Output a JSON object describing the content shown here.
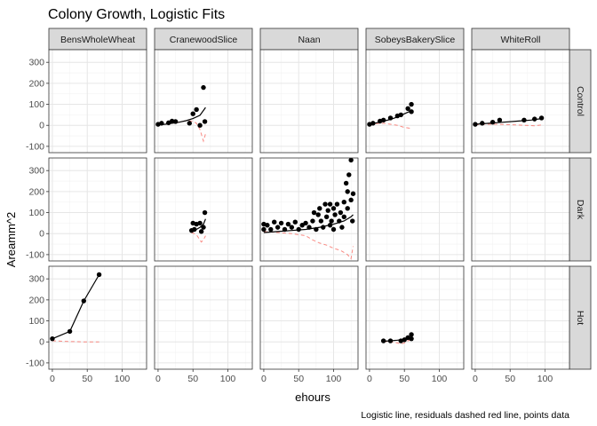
{
  "chart_data": {
    "type": "scatter",
    "title": "Colony Growth, Logistic Fits",
    "xlabel": "ehours",
    "ylabel": "Areamm^2",
    "caption": "Logistic line, residuals dashed red line, points data",
    "facet_cols": [
      "BensWholeWheat",
      "CranewoodSlice",
      "Naan",
      "SobeysBakerySlice",
      "WhiteRoll"
    ],
    "facet_rows": [
      "Control",
      "Dark",
      "Hot"
    ],
    "x_ticks": [
      "0",
      "50",
      "100"
    ],
    "y_ticks": [
      "-100",
      "0",
      "100",
      "200",
      "300"
    ],
    "xlim": [
      -5,
      135
    ],
    "ylim": [
      -130,
      360
    ],
    "grid": true,
    "colors": {
      "points": "#000000",
      "fit": "#000000",
      "residuals": "#f8766d",
      "strip": "#d9d9d9"
    },
    "panels": [
      {
        "col": "CranewoodSlice",
        "row": "Control",
        "points": [
          [
            0,
            5
          ],
          [
            5,
            10
          ],
          [
            15,
            12
          ],
          [
            20,
            20
          ],
          [
            25,
            18
          ],
          [
            45,
            10
          ],
          [
            50,
            55
          ],
          [
            55,
            75
          ],
          [
            60,
            0
          ],
          [
            65,
            180
          ],
          [
            67,
            18
          ]
        ],
        "fit": [
          [
            0,
            2
          ],
          [
            10,
            5
          ],
          [
            20,
            10
          ],
          [
            30,
            15
          ],
          [
            40,
            22
          ],
          [
            50,
            32
          ],
          [
            60,
            48
          ],
          [
            68,
            85
          ]
        ],
        "residuals": [
          [
            0,
            2
          ],
          [
            10,
            5
          ],
          [
            20,
            10
          ],
          [
            30,
            15
          ],
          [
            40,
            22
          ],
          [
            50,
            20
          ],
          [
            55,
            10
          ],
          [
            60,
            -20
          ],
          [
            65,
            -75
          ],
          [
            68,
            -40
          ]
        ]
      },
      {
        "col": "SobeysBakerySlice",
        "row": "Control",
        "points": [
          [
            0,
            5
          ],
          [
            5,
            10
          ],
          [
            15,
            20
          ],
          [
            20,
            25
          ],
          [
            30,
            35
          ],
          [
            40,
            45
          ],
          [
            55,
            80
          ],
          [
            60,
            100
          ],
          [
            60,
            65
          ],
          [
            45,
            50
          ]
        ],
        "fit": [
          [
            0,
            5
          ],
          [
            10,
            12
          ],
          [
            20,
            20
          ],
          [
            30,
            28
          ],
          [
            40,
            40
          ],
          [
            50,
            55
          ],
          [
            60,
            70
          ]
        ],
        "residuals": [
          [
            0,
            5
          ],
          [
            10,
            8
          ],
          [
            20,
            10
          ],
          [
            30,
            5
          ],
          [
            40,
            0
          ],
          [
            45,
            -5
          ],
          [
            50,
            -10
          ],
          [
            55,
            -12
          ],
          [
            60,
            -15
          ]
        ]
      },
      {
        "col": "WhiteRoll",
        "row": "Control",
        "points": [
          [
            0,
            5
          ],
          [
            10,
            10
          ],
          [
            25,
            15
          ],
          [
            35,
            25
          ],
          [
            70,
            25
          ],
          [
            85,
            30
          ],
          [
            95,
            35
          ]
        ],
        "fit": [
          [
            0,
            5
          ],
          [
            20,
            10
          ],
          [
            40,
            15
          ],
          [
            60,
            20
          ],
          [
            80,
            25
          ],
          [
            95,
            32
          ]
        ],
        "residuals": [
          [
            0,
            3
          ],
          [
            15,
            5
          ],
          [
            30,
            5
          ],
          [
            50,
            3
          ],
          [
            70,
            0
          ],
          [
            85,
            -2
          ],
          [
            95,
            2
          ]
        ]
      },
      {
        "col": "CranewoodSlice",
        "row": "Dark",
        "points": [
          [
            48,
            15
          ],
          [
            50,
            50
          ],
          [
            52,
            20
          ],
          [
            55,
            45
          ],
          [
            60,
            50
          ],
          [
            62,
            10
          ],
          [
            65,
            30
          ],
          [
            67,
            100
          ]
        ],
        "fit": [
          [
            48,
            10
          ],
          [
            55,
            20
          ],
          [
            60,
            30
          ],
          [
            65,
            45
          ],
          [
            68,
            70
          ]
        ],
        "residuals": [
          [
            48,
            5
          ],
          [
            55,
            -5
          ],
          [
            58,
            -20
          ],
          [
            62,
            -40
          ],
          [
            65,
            -30
          ],
          [
            68,
            -10
          ]
        ]
      },
      {
        "col": "Naan",
        "row": "Dark",
        "points": [
          [
            0,
            20
          ],
          [
            0,
            45
          ],
          [
            5,
            40
          ],
          [
            10,
            20
          ],
          [
            15,
            55
          ],
          [
            20,
            30
          ],
          [
            25,
            50
          ],
          [
            30,
            20
          ],
          [
            35,
            45
          ],
          [
            40,
            30
          ],
          [
            45,
            55
          ],
          [
            50,
            20
          ],
          [
            55,
            40
          ],
          [
            60,
            50
          ],
          [
            65,
            30
          ],
          [
            70,
            60
          ],
          [
            72,
            100
          ],
          [
            75,
            20
          ],
          [
            78,
            90
          ],
          [
            80,
            120
          ],
          [
            82,
            60
          ],
          [
            85,
            30
          ],
          [
            88,
            140
          ],
          [
            90,
            80
          ],
          [
            92,
            110
          ],
          [
            95,
            140
          ],
          [
            95,
            40
          ],
          [
            97,
            60
          ],
          [
            100,
            120
          ],
          [
            100,
            20
          ],
          [
            102,
            90
          ],
          [
            105,
            140
          ],
          [
            108,
            60
          ],
          [
            110,
            100
          ],
          [
            112,
            30
          ],
          [
            115,
            150
          ],
          [
            115,
            80
          ],
          [
            118,
            240
          ],
          [
            120,
            200
          ],
          [
            120,
            120
          ],
          [
            122,
            280
          ],
          [
            125,
            350
          ],
          [
            125,
            160
          ],
          [
            127,
            60
          ],
          [
            128,
            190
          ]
        ],
        "fit": [
          [
            0,
            5
          ],
          [
            20,
            10
          ],
          [
            40,
            15
          ],
          [
            60,
            20
          ],
          [
            80,
            30
          ],
          [
            100,
            45
          ],
          [
            115,
            60
          ],
          [
            125,
            80
          ],
          [
            128,
            90
          ]
        ],
        "residuals": [
          [
            0,
            10
          ],
          [
            20,
            5
          ],
          [
            40,
            0
          ],
          [
            60,
            -10
          ],
          [
            70,
            -30
          ],
          [
            80,
            -45
          ],
          [
            90,
            -55
          ],
          [
            100,
            -70
          ],
          [
            110,
            -80
          ],
          [
            120,
            -100
          ],
          [
            125,
            -120
          ],
          [
            128,
            -60
          ]
        ]
      },
      {
        "col": "BensWholeWheat",
        "row": "Hot",
        "points": [
          [
            0,
            15
          ],
          [
            25,
            50
          ],
          [
            45,
            195
          ],
          [
            67,
            320
          ]
        ],
        "fit": [
          [
            0,
            15
          ],
          [
            25,
            50
          ],
          [
            45,
            195
          ],
          [
            67,
            320
          ]
        ],
        "residuals": [
          [
            0,
            5
          ],
          [
            25,
            2
          ],
          [
            45,
            0
          ],
          [
            67,
            0
          ]
        ]
      },
      {
        "col": "SobeysBakerySlice",
        "row": "Hot",
        "points": [
          [
            20,
            5
          ],
          [
            30,
            5
          ],
          [
            45,
            5
          ],
          [
            50,
            10
          ],
          [
            60,
            15
          ],
          [
            60,
            35
          ],
          [
            55,
            20
          ]
        ],
        "fit": [
          [
            20,
            3
          ],
          [
            30,
            5
          ],
          [
            40,
            8
          ],
          [
            50,
            12
          ],
          [
            60,
            22
          ]
        ],
        "residuals": [
          [
            20,
            2
          ],
          [
            30,
            0
          ],
          [
            40,
            -5
          ],
          [
            45,
            -10
          ],
          [
            50,
            -5
          ],
          [
            55,
            5
          ],
          [
            60,
            10
          ]
        ]
      }
    ]
  }
}
